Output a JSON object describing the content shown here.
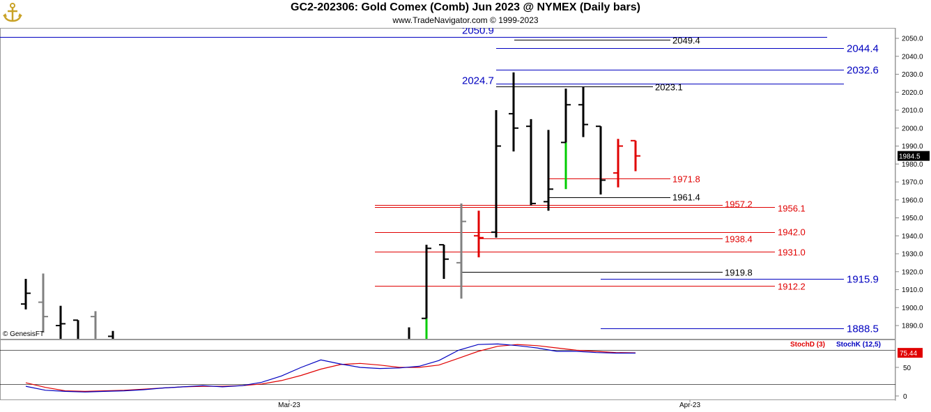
{
  "header": {
    "title": "GC2-202306:  Gold Comex (Comb) Jun 2023 @ NYMEX  (Daily bars)",
    "subtitle": "www.TradeNavigator.com © 1999-2023",
    "credit": "© GenesisFT"
  },
  "colors": {
    "up_bar": "#000000",
    "down_bar": "#e00000",
    "neutral_bar": "#808080",
    "highlight_bar": "#00cc00",
    "level_blue": "#0000c0",
    "level_red": "#e00000",
    "level_black": "#000000"
  },
  "chart_data": [
    {
      "type": "ohlc",
      "title": "GC2-202306:  Gold Comex (Comb) Jun 2023 @ NYMEX  (Daily bars)",
      "xlabel": "",
      "ylabel": "",
      "ylim": [
        1880,
        2055
      ],
      "y_ticks": [
        "2050.0",
        "2040.0",
        "2030.0",
        "2020.0",
        "2010.0",
        "2000.0",
        "1990.0",
        "1980.0",
        "1970.0",
        "1960.0",
        "1950.0",
        "1940.0",
        "1930.0",
        "1920.0",
        "1910.0",
        "1900.0",
        "1890.0"
      ],
      "x_ticks": [
        "Mar-23",
        "Apr-23"
      ],
      "last_price": "1984.5",
      "bars": [
        {
          "o": 1902,
          "h": 1916,
          "l": 1899,
          "c": 1908,
          "color": "up"
        },
        {
          "o": 1903,
          "h": 1919,
          "l": 1886,
          "c": 1895,
          "color": "neutral"
        },
        {
          "o": 1890,
          "h": 1901,
          "l": 1879,
          "c": 1891,
          "color": "up"
        },
        {
          "o": 1893,
          "h": 1893,
          "l": 1879,
          "c": 1882,
          "color": "up"
        },
        {
          "o": 1895,
          "h": 1898,
          "l": 1879,
          "c": 1882,
          "color": "neutral"
        },
        {
          "o": 1884,
          "h": 1887,
          "l": 1879,
          "c": 1881,
          "color": "up"
        },
        {
          "o": 1881,
          "h": 1889,
          "l": 1879,
          "c": 1882,
          "color": "up"
        },
        {
          "o": 1894,
          "h": 1935,
          "l": 1880,
          "c": 1933,
          "color": "highlight"
        },
        {
          "o": 1935,
          "h": 1935,
          "l": 1916,
          "c": 1927,
          "color": "up"
        },
        {
          "o": 1925,
          "h": 1958,
          "l": 1905,
          "c": 1948,
          "color": "neutral"
        },
        {
          "o": 1940,
          "h": 1954,
          "l": 1928,
          "c": 1939,
          "color": "down"
        },
        {
          "o": 1942,
          "h": 2010,
          "l": 1939,
          "c": 1990,
          "color": "up"
        },
        {
          "o": 2008,
          "h": 2031,
          "l": 1987,
          "c": 2000,
          "color": "up"
        },
        {
          "o": 2001,
          "h": 2005,
          "l": 1957,
          "c": 1958,
          "color": "up"
        },
        {
          "o": 1959,
          "h": 1999,
          "l": 1954,
          "c": 1966,
          "color": "up"
        },
        {
          "o": 1992,
          "h": 2022,
          "l": 1966,
          "c": 2013,
          "color": "highlight"
        },
        {
          "o": 2013,
          "h": 2023,
          "l": 1995,
          "c": 2002,
          "color": "up"
        },
        {
          "o": 2001,
          "h": 2001,
          "l": 1963,
          "c": 1971,
          "color": "up"
        },
        {
          "o": 1975,
          "h": 1994,
          "l": 1967,
          "c": 1990,
          "color": "down"
        },
        {
          "o": 1993,
          "h": 1993,
          "l": 1976,
          "c": 1984.5,
          "color": "down"
        }
      ],
      "levels": [
        {
          "label": "2050.9",
          "value": 2050.9,
          "color": "blue",
          "label_side": "left",
          "big": true
        },
        {
          "label": "2049.4",
          "value": 2049.4,
          "color": "black",
          "label_side": "right",
          "big": false
        },
        {
          "label": "2044.4",
          "value": 2044.4,
          "color": "blue",
          "label_side": "right",
          "big": true
        },
        {
          "label": "2032.6",
          "value": 2032.6,
          "color": "blue",
          "label_side": "right",
          "big": true
        },
        {
          "label": "2024.7",
          "value": 2024.7,
          "color": "blue",
          "label_side": "left",
          "big": true
        },
        {
          "label": "2023.1",
          "value": 2023.1,
          "color": "black",
          "label_side": "right",
          "big": false
        },
        {
          "label": "1971.8",
          "value": 1971.8,
          "color": "red",
          "label_side": "right",
          "big": false
        },
        {
          "label": "1961.4",
          "value": 1961.4,
          "color": "black",
          "label_side": "right",
          "big": false
        },
        {
          "label": "1957.2",
          "value": 1957.2,
          "color": "red",
          "label_side": "right",
          "big": false
        },
        {
          "label": "1956.1",
          "value": 1956.1,
          "color": "red",
          "label_side": "right",
          "big": false
        },
        {
          "label": "1942.0",
          "value": 1942.0,
          "color": "red",
          "label_side": "right",
          "big": false
        },
        {
          "label": "1938.4",
          "value": 1938.4,
          "color": "red",
          "label_side": "right",
          "big": false
        },
        {
          "label": "1931.0",
          "value": 1931.0,
          "color": "red",
          "label_side": "right",
          "big": false
        },
        {
          "label": "1919.8",
          "value": 1919.8,
          "color": "black",
          "label_side": "right",
          "big": false
        },
        {
          "label": "1915.9",
          "value": 1915.9,
          "color": "blue",
          "label_side": "right",
          "big": true
        },
        {
          "label": "1912.2",
          "value": 1912.2,
          "color": "red",
          "label_side": "right",
          "big": false
        },
        {
          "label": "1888.5",
          "value": 1888.5,
          "color": "blue",
          "label_side": "right",
          "big": true
        }
      ]
    },
    {
      "type": "line",
      "title": "",
      "ylim": [
        0,
        100
      ],
      "y_ticks": [
        "50",
        "0"
      ],
      "last_value": "75.44",
      "series": [
        {
          "name": "StochD (3)",
          "color": "#e00000",
          "values": [
            23,
            15,
            9,
            8,
            9,
            10,
            12,
            14,
            16,
            17,
            17,
            18,
            21,
            27,
            36,
            47,
            55,
            57,
            54,
            50,
            50,
            54,
            66,
            78,
            87,
            90,
            88,
            84,
            80,
            78,
            76,
            75.44
          ]
        },
        {
          "name": "StochK (12,5)",
          "color": "#0000c0",
          "values": [
            17,
            10,
            8,
            7,
            8,
            9,
            11,
            14,
            16,
            18,
            16,
            18,
            24,
            35,
            50,
            63,
            56,
            50,
            48,
            49,
            52,
            62,
            80,
            90,
            91,
            88,
            84,
            78,
            78,
            76,
            75,
            75
          ]
        }
      ]
    }
  ]
}
